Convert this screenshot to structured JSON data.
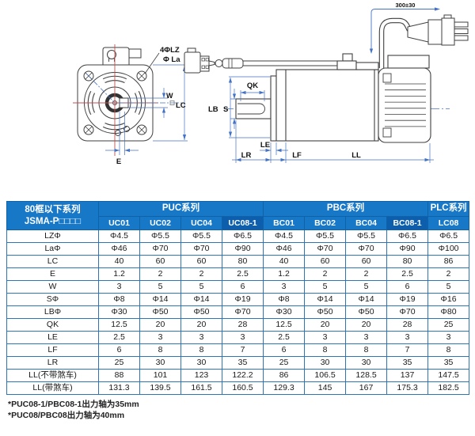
{
  "diagram": {
    "front_view": {
      "holes_label": "4ΦLZ",
      "bolt_circle_label": "Φ La",
      "key_width_label": "W",
      "frame_label": "LC",
      "key_offset_label": "E"
    },
    "side_view": {
      "cable_length_label": "300±30",
      "key_length_label": "QK",
      "shaft_dia_label": "S",
      "pilot_dia_label": "LB",
      "le_label": "LE",
      "lr_label": "LR",
      "lf_label": "LF",
      "ll_label": "LL"
    }
  },
  "table": {
    "corner_header_line1": "80框以下系列",
    "corner_header_line2": "JSMA-P□□□□",
    "groups": [
      {
        "label": "PUC系列",
        "span": 4
      },
      {
        "label": "PBC系列",
        "span": 4
      },
      {
        "label": "PLC系列",
        "span": 1
      }
    ],
    "models": [
      "UC01",
      "UC02",
      "UC04",
      "UC08-1",
      "BC01",
      "BC02",
      "BC04",
      "BC08-1",
      "LC08"
    ],
    "rows": [
      {
        "label": "LZΦ",
        "values": [
          "Φ4.5",
          "Φ5.5",
          "Φ5.5",
          "Φ6.5",
          "Φ4.5",
          "Φ5.5",
          "Φ5.5",
          "Φ6.5",
          "Φ6.5"
        ]
      },
      {
        "label": "LaΦ",
        "values": [
          "Φ46",
          "Φ70",
          "Φ70",
          "Φ90",
          "Φ46",
          "Φ70",
          "Φ70",
          "Φ90",
          "Φ100"
        ]
      },
      {
        "label": "LC",
        "values": [
          "40",
          "60",
          "60",
          "80",
          "40",
          "60",
          "60",
          "80",
          "86"
        ]
      },
      {
        "label": "E",
        "values": [
          "1.2",
          "2",
          "2",
          "2.5",
          "1.2",
          "2",
          "2",
          "2.5",
          "2"
        ]
      },
      {
        "label": "W",
        "values": [
          "3",
          "5",
          "5",
          "6",
          "3",
          "5",
          "5",
          "6",
          "5"
        ]
      },
      {
        "label": "SΦ",
        "values": [
          "Φ8",
          "Φ14",
          "Φ14",
          "Φ19",
          "Φ8",
          "Φ14",
          "Φ14",
          "Φ19",
          "Φ16"
        ]
      },
      {
        "label": "LBΦ",
        "values": [
          "Φ30",
          "Φ50",
          "Φ50",
          "Φ70",
          "Φ30",
          "Φ50",
          "Φ50",
          "Φ70",
          "Φ80"
        ]
      },
      {
        "label": "QK",
        "values": [
          "12.5",
          "20",
          "20",
          "28",
          "12.5",
          "20",
          "20",
          "28",
          "25"
        ]
      },
      {
        "label": "LE",
        "values": [
          "2.5",
          "3",
          "3",
          "3",
          "2.5",
          "3",
          "3",
          "3",
          "3"
        ]
      },
      {
        "label": "LF",
        "values": [
          "6",
          "8",
          "8",
          "7",
          "6",
          "8",
          "8",
          "7",
          "8"
        ]
      },
      {
        "label": "LR",
        "values": [
          "25",
          "30",
          "30",
          "35",
          "25",
          "30",
          "30",
          "35",
          "35"
        ]
      },
      {
        "label": "LL(不带煞车)",
        "values": [
          "88",
          "101",
          "123",
          "122.2",
          "86",
          "106.5",
          "128.5",
          "137",
          "147.5"
        ]
      },
      {
        "label": "LL(带煞车)",
        "values": [
          "131.3",
          "139.5",
          "161.5",
          "160.5",
          "129.3",
          "145",
          "167",
          "175.3",
          "182.5"
        ]
      }
    ]
  },
  "footnotes": [
    "*PUC08-1/PBC08-1出力轴为35mm",
    "*PUC08/PBC08出力轴为40mm"
  ],
  "colors": {
    "header_blue": "#1878C8",
    "header_blue_dark": "#0D5FAD",
    "table_border_blue": "#2E75B6",
    "dimension_blue": "#4472C4",
    "centerline_red": "#C25050"
  }
}
